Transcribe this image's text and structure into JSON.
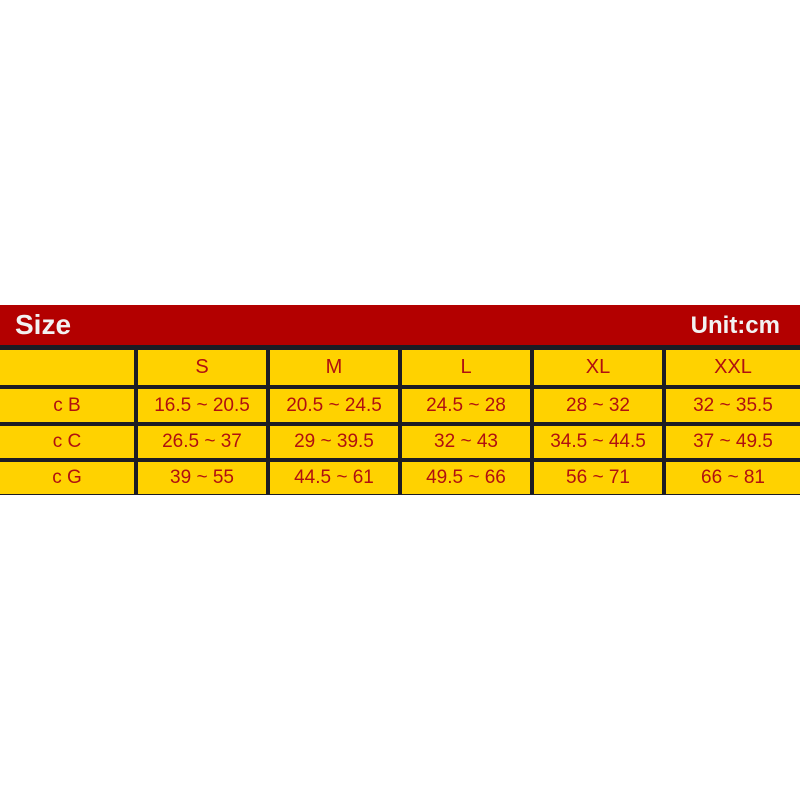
{
  "header": {
    "title": "Size",
    "unit": "Unit:cm"
  },
  "table": {
    "columns": [
      "",
      "S",
      "M",
      "L",
      "XL",
      "XXL"
    ],
    "rows": [
      {
        "label": "c B",
        "values": [
          "16.5 ~ 20.5",
          "20.5 ~ 24.5",
          "24.5 ~ 28",
          "28 ~ 32",
          "32 ~ 35.5"
        ]
      },
      {
        "label": "c C",
        "values": [
          "26.5 ~ 37",
          "29 ~ 39.5",
          "32 ~ 43",
          "34.5 ~ 44.5",
          "37 ~ 49.5"
        ]
      },
      {
        "label": "c G",
        "values": [
          "39 ~ 55",
          "44.5 ~ 61",
          "49.5 ~ 66",
          "56 ~ 71",
          "66 ~ 81"
        ]
      }
    ]
  },
  "colors": {
    "banner": "#b30000",
    "cell": "#ffd200",
    "text": "#b01010",
    "border": "#1c1c24"
  }
}
